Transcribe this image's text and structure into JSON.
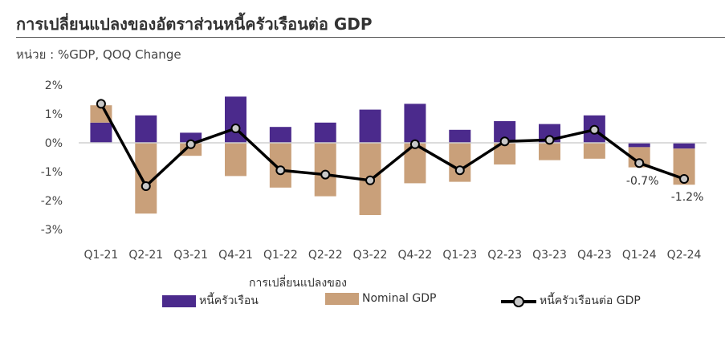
{
  "header": {
    "title": "การเปลี่ยนแปลงของอัตราส่วนหนี้ครัวเรือนต่อ  GDP",
    "subtitle": "หน่วย : %GDP, QOQ Change"
  },
  "chart_data": {
    "type": "bar",
    "categories": [
      "Q1-21",
      "Q2-21",
      "Q3-21",
      "Q4-21",
      "Q1-22",
      "Q2-22",
      "Q3-22",
      "Q4-22",
      "Q1-23",
      "Q2-23",
      "Q3-23",
      "Q4-23",
      "Q1-24",
      "Q2-24"
    ],
    "ylim": [
      -3,
      2
    ],
    "yticks": [
      2,
      1,
      0,
      -1,
      -2,
      -3
    ],
    "ytick_labels": [
      "2%",
      "1%",
      "0%",
      "-1%",
      "-2%",
      "-3%"
    ],
    "legend_title": "การเปลี่ยนแปลงของ",
    "legend_position": "bottom",
    "series": [
      {
        "name": "หนี้ครัวเรือน",
        "type": "bar",
        "color": "#4b2a8c",
        "values": [
          0.7,
          0.95,
          0.35,
          1.6,
          0.55,
          0.7,
          1.15,
          1.35,
          0.45,
          0.75,
          0.65,
          0.95,
          -0.15,
          -0.2
        ]
      },
      {
        "name": "Nominal GDP",
        "type": "bar",
        "color": "#c9a07a",
        "values": [
          0.6,
          -2.45,
          -0.45,
          -1.15,
          -1.55,
          -1.85,
          -2.5,
          -1.4,
          -1.35,
          -0.75,
          -0.6,
          -0.55,
          -0.7,
          -1.25
        ]
      },
      {
        "name": "หนี้ครัวเรือนต่อ GDP",
        "type": "line",
        "color": "#000000",
        "values": [
          1.35,
          -1.5,
          -0.05,
          0.5,
          -0.95,
          -1.1,
          -1.3,
          -0.05,
          -0.95,
          0.05,
          0.1,
          0.45,
          -0.7,
          -1.25
        ]
      }
    ],
    "data_labels": [
      {
        "series": 2,
        "index": 12,
        "text": "-0.7%"
      },
      {
        "series": 2,
        "index": 13,
        "text": "-1.2%"
      }
    ]
  }
}
